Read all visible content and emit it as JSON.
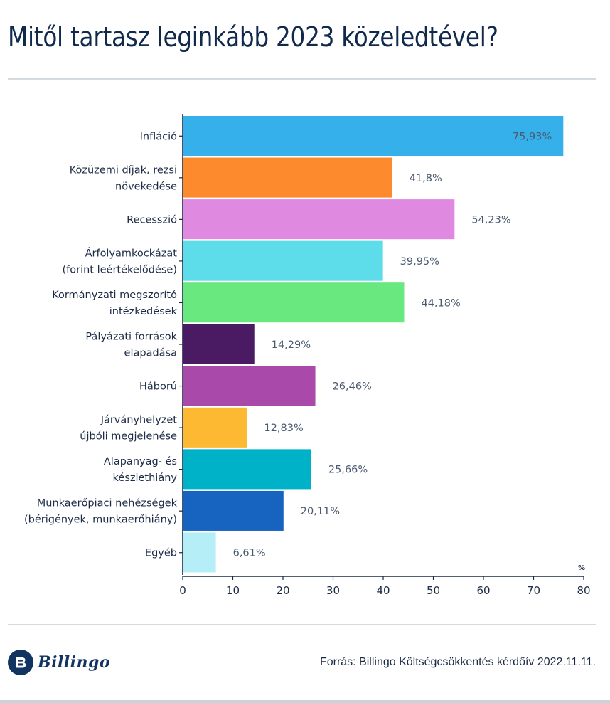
{
  "header": {
    "title": "Mitől tartasz leginkább 2023 közeledtével?"
  },
  "chart_data": {
    "type": "bar",
    "orientation": "horizontal",
    "title": "Mitől tartasz leginkább 2023 közeledtével?",
    "xlabel": "%",
    "ylabel": "",
    "xlim": [
      0,
      80
    ],
    "x_ticks": [
      "0",
      "10",
      "20",
      "30",
      "40",
      "50",
      "60",
      "70",
      "80"
    ],
    "grid": false,
    "legend": "none",
    "categories": [
      [
        "Infláció"
      ],
      [
        "Közüzemi díjak, rezsi",
        "növekedése"
      ],
      [
        "Recesszió"
      ],
      [
        "Árfolyamkockázat",
        "(forint leértékelődése)"
      ],
      [
        "Kormányzati megszorító",
        "intézkedések"
      ],
      [
        "Pályázati források",
        "elapadása"
      ],
      [
        "Háború"
      ],
      [
        "Járványhelyzet",
        "újbóli megjelenése"
      ],
      [
        "Alapanyag- és",
        "készlethiány"
      ],
      [
        "Munkaerőpiaci nehézségek",
        "(bérigények, munkaerőhiány)"
      ],
      [
        "Egyéb"
      ]
    ],
    "values": [
      75.93,
      41.8,
      54.23,
      39.95,
      44.18,
      14.29,
      26.46,
      12.83,
      25.66,
      20.11,
      6.61
    ],
    "value_labels": [
      "75,93%",
      "41,8%",
      "54,23%",
      "39,95%",
      "44,18%",
      "14,29%",
      "26,46%",
      "12,83%",
      "25,66%",
      "20,11%",
      "6,61%"
    ],
    "colors": [
      "#36b0ea",
      "#fd8a2c",
      "#e089e0",
      "#5ddce9",
      "#6ae880",
      "#4a1a63",
      "#a94aaa",
      "#feb932",
      "#00b2c8",
      "#1763c0",
      "#b5eef6"
    ]
  },
  "footer": {
    "logo_text": "Billingo",
    "logo_letter": "B",
    "source": "Forrás: Billingo Költségcsökkentés kérdőív 2022.11.11."
  }
}
